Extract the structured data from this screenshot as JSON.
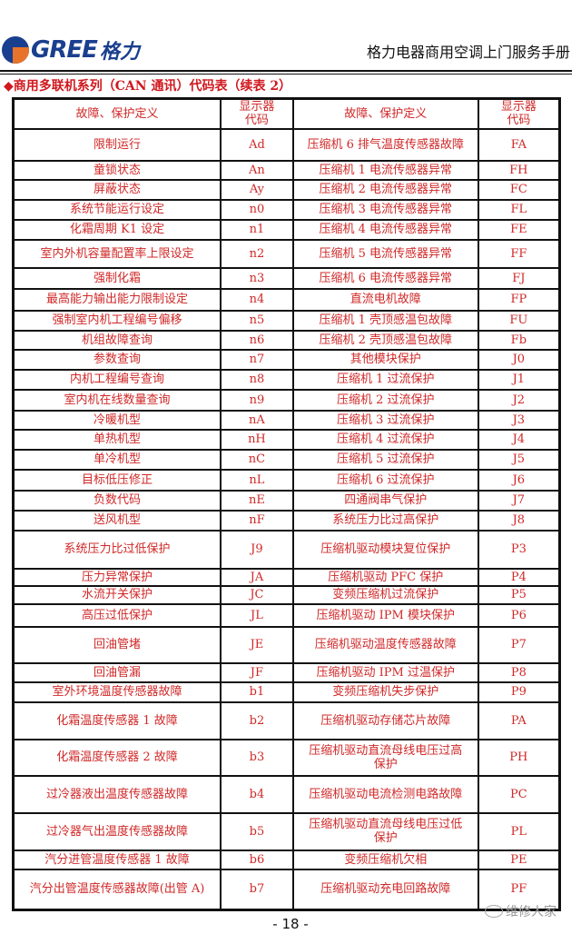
{
  "header": {
    "logo_text": "GREE",
    "logo_cn": "格力",
    "manual_title": "格力电器商用空调上门服务手册"
  },
  "section_title": "◆商用多联机系列（CAN 通讯）代码表（续表 2）",
  "table": {
    "headers": [
      "故障、保护定义",
      "显示器代码",
      "故障、保护定义",
      "显示器代码"
    ],
    "rows": [
      [
        "限制运行",
        "Ad",
        "压缩机 6 排气温度传感器故障",
        "FA"
      ],
      [
        "童锁状态",
        "An",
        "压缩机 1 电流传感器异常",
        "FH"
      ],
      [
        "屏蔽状态",
        "Ay",
        "压缩机 2 电流传感器异常",
        "FC"
      ],
      [
        "系统节能运行设定",
        "n0",
        "压缩机 3 电流传感器异常",
        "FL"
      ],
      [
        "化霜周期 K1 设定",
        "n1",
        "压缩机 4 电流传感器异常",
        "FE"
      ],
      [
        "室内外机容量配置率上限设定",
        "n2",
        "压缩机 5 电流传感器异常",
        "FF"
      ],
      [
        "强制化霜",
        "n3",
        "压缩机 6 电流传感器异常",
        "FJ"
      ],
      [
        "最高能力输出能力限制设定",
        "n4",
        "直流电机故障",
        "FP"
      ],
      [
        "强制室内机工程编号偏移",
        "n5",
        "压缩机 1 壳顶感温包故障",
        "FU"
      ],
      [
        "机组故障查询",
        "n6",
        "压缩机 2 壳顶感温包故障",
        "Fb"
      ],
      [
        "参数查询",
        "n7",
        "其他模块保护",
        "J0"
      ],
      [
        "内机工程编号查询",
        "n8",
        "压缩机 1 过流保护",
        "J1"
      ],
      [
        "室内机在线数量查询",
        "n9",
        "压缩机 2 过流保护",
        "J2"
      ],
      [
        "冷暖机型",
        "nA",
        "压缩机 3 过流保护",
        "J3"
      ],
      [
        "单热机型",
        "nH",
        "压缩机 4 过流保护",
        "J4"
      ],
      [
        "单冷机型",
        "nC",
        "压缩机 5 过流保护",
        "J5"
      ],
      [
        "目标低压修正",
        "nL",
        "压缩机 6 过流保护",
        "J6"
      ],
      [
        "负数代码",
        "nE",
        "四通阀串气保护",
        "J7"
      ],
      [
        "送风机型",
        "nF",
        "系统压力比过高保护",
        "J8"
      ],
      [
        "系统压力比过低保护",
        "J9",
        "压缩机驱动模块复位保护",
        "P3"
      ],
      [
        "压力异常保护",
        "JA",
        "压缩机驱动 PFC 保护",
        "P4"
      ],
      [
        "水流开关保护",
        "JC",
        "变频压缩机过流保护",
        "P5"
      ],
      [
        "高压过低保护",
        "JL",
        "压缩机驱动 IPM 模块保护",
        "P6"
      ],
      [
        "回油管堵",
        "JE",
        "压缩机驱动温度传感器故障",
        "P7"
      ],
      [
        "回油管漏",
        "JF",
        "压缩机驱动 IPM 过温保护",
        "P8"
      ],
      [
        "室外环境温度传感器故障",
        "b1",
        "变频压缩机失步保护",
        "P9"
      ],
      [
        "化霜温度传感器 1 故障",
        "b2",
        "压缩机驱动存储芯片故障",
        "PA"
      ],
      [
        "化霜温度传感器 2 故障",
        "b3",
        "压缩机驱动直流母线电压过高保护",
        "PH"
      ],
      [
        "过冷器液出温度传感器故障",
        "b4",
        "压缩机驱动电流检测电路故障",
        "PC"
      ],
      [
        "过冷器气出温度传感器故障",
        "b5",
        "压缩机驱动直流母线电压过低保护",
        "PL"
      ],
      [
        "汽分进管温度传感器 1 故障",
        "b6",
        "变频压缩机欠相",
        "PE"
      ],
      [
        "汽分出管温度传感器故障(出管 A)",
        "b7",
        "压缩机驱动充电回路故障",
        "PF"
      ]
    ]
  },
  "page_number": "- 18 -",
  "watermark": "维修人家",
  "colors": {
    "text_red": "#d02828",
    "brand_blue": "#1a3f8f",
    "brand_orange": "#e8732a"
  }
}
